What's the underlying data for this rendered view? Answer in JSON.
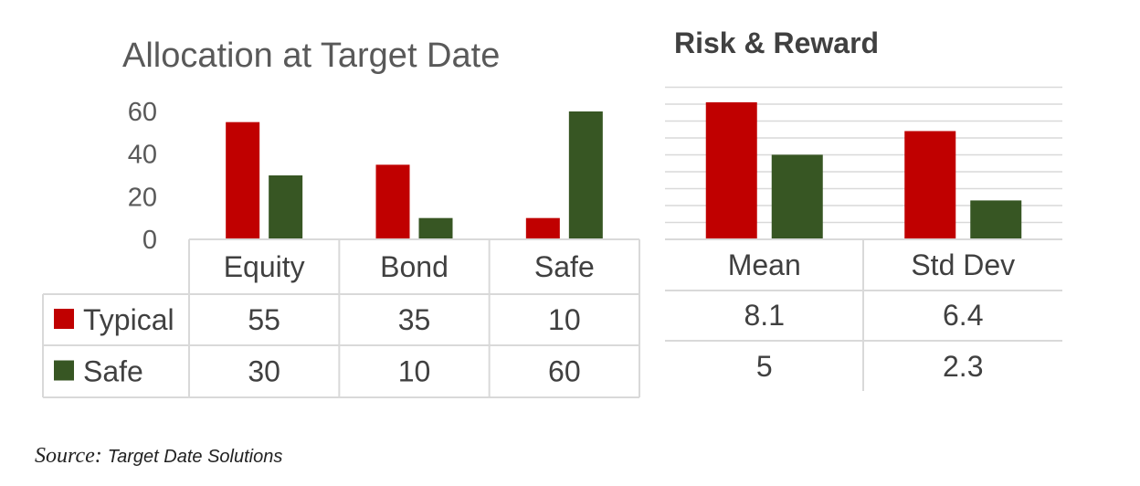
{
  "chart_data": [
    {
      "type": "bar",
      "title": "Allocation at Target Date",
      "categories": [
        "Equity",
        "Bond",
        "Safe"
      ],
      "series": [
        {
          "name": "Typical",
          "values": [
            55,
            35,
            10
          ],
          "color": "#C00000"
        },
        {
          "name": "Safe",
          "values": [
            30,
            10,
            60
          ],
          "color": "#375623"
        }
      ],
      "yticks": [
        0,
        20,
        40,
        60
      ],
      "ylim": [
        0,
        60
      ],
      "grid": false,
      "data_table": true,
      "legend": "data-table"
    },
    {
      "type": "bar",
      "title": "Risk & Reward",
      "categories": [
        "Mean",
        "Std Dev"
      ],
      "series": [
        {
          "values": [
            8.1,
            6.4
          ],
          "color": "#C00000"
        },
        {
          "values": [
            5,
            2.3
          ],
          "color": "#375623"
        }
      ],
      "yaxis_labels": false,
      "grid": true,
      "data_table": true
    }
  ],
  "source": {
    "label": "Source:",
    "value": "Target Date Solutions"
  }
}
